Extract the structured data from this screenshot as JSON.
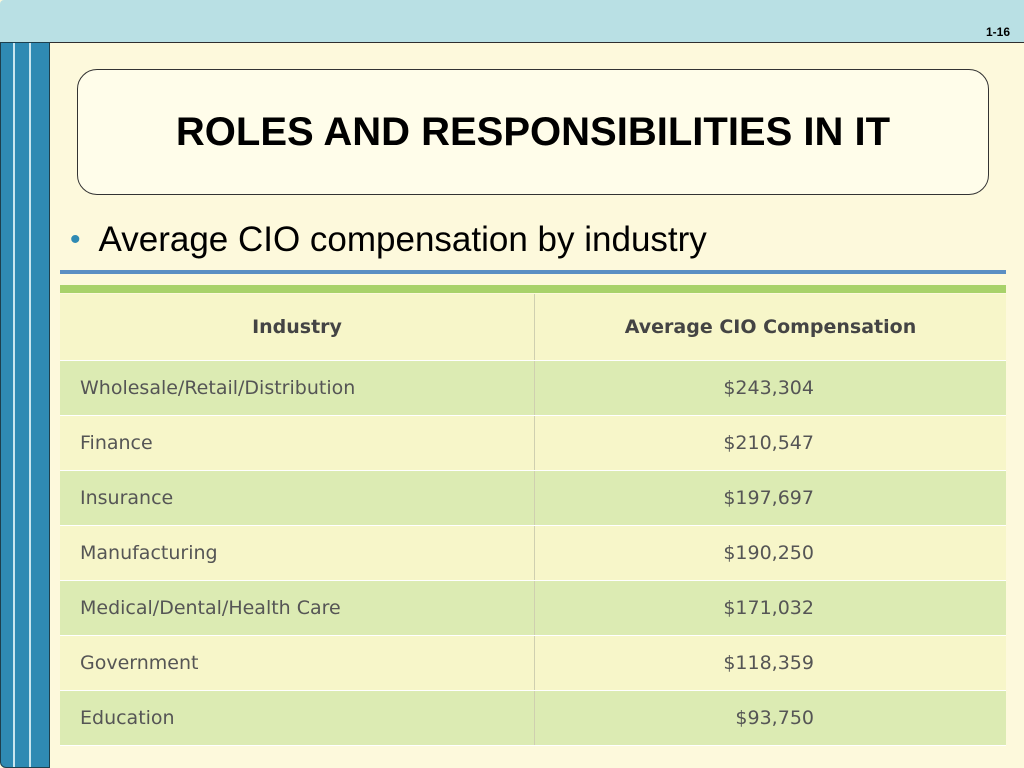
{
  "slide_number": "1-16",
  "title": "ROLES AND RESPONSIBILITIES IN IT",
  "bullet": "Average CIO compensation by industry",
  "table": {
    "headers": [
      "Industry",
      "Average CIO Compensation"
    ],
    "rows": [
      {
        "industry": "Wholesale/Retail/Distribution",
        "compensation": "$243,304"
      },
      {
        "industry": "Finance",
        "compensation": "$210,547"
      },
      {
        "industry": "Insurance",
        "compensation": "$197,697"
      },
      {
        "industry": "Manufacturing",
        "compensation": "$190,250"
      },
      {
        "industry": "Medical/Dental/Health Care",
        "compensation": "$171,032"
      },
      {
        "industry": "Government",
        "compensation": "$118,359"
      },
      {
        "industry": "Education",
        "compensation": "$93,750"
      }
    ]
  },
  "colors": {
    "background": "#fdf9dc",
    "top_band": "#b9e0e4",
    "left_bar": "#2f8ab3",
    "row_green": "#dcebb3",
    "row_yellow": "#f7f6c9",
    "rule_blue": "#5b8fc3",
    "rule_green": "#a8d26a"
  }
}
